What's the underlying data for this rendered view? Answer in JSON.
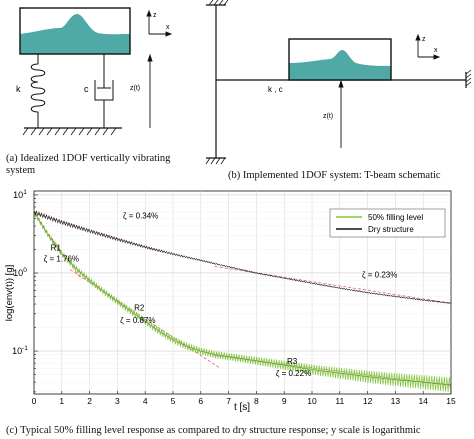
{
  "captions": {
    "a": "(a) Idealized 1DOF vertically vibrating system",
    "b": "(b) Implemented 1DOF system: T-beam schematic",
    "c": "(c) Typical 50% filling level response as compared to dry structure response; y scale is logarithmic"
  },
  "diagram_a": {
    "axis_z": "z",
    "axis_x": "x",
    "spring_label": "k",
    "damper_label": "c",
    "displacement_label": "z(t)"
  },
  "diagram_b": {
    "axis_z": "z",
    "axis_x": "x",
    "beam_label": "k , c",
    "displacement_label": "z(t)"
  },
  "colors": {
    "liquid": "#4fa9a6",
    "filling_series": "#7fc63a",
    "filling_series_dark": "#3f6f1f",
    "dry_series": "#111111",
    "fit_line": "#e0504a"
  },
  "chart_data": {
    "type": "line",
    "title": "",
    "xlabel": "t [s]",
    "ylabel": "log(env(t)) [g]",
    "xlim": [
      0,
      15
    ],
    "ylim_log10": [
      -1.55,
      1.05
    ],
    "yscale": "log",
    "grid": true,
    "legend_position": "top-right",
    "x_ticks": [
      0,
      1,
      2,
      3,
      4,
      5,
      6,
      7,
      8,
      9,
      10,
      11,
      12,
      13,
      14,
      15
    ],
    "y_ticks": [
      {
        "exp": -1,
        "value": 0.1
      },
      {
        "exp": 0,
        "value": 1
      },
      {
        "exp": 1,
        "value": 10
      }
    ],
    "series": [
      {
        "name": "50% filling level",
        "x": [
          0,
          0.5,
          1.0,
          1.5,
          2.0,
          2.5,
          3.0,
          3.5,
          4.0,
          4.5,
          5.0,
          5.5,
          6.0,
          6.5,
          7.0,
          8.0,
          9.0,
          10.0,
          11.0,
          12.0,
          13.0,
          14.0,
          15.0
        ],
        "y": [
          6.0,
          3.1,
          1.75,
          1.15,
          0.8,
          0.58,
          0.43,
          0.32,
          0.24,
          0.18,
          0.14,
          0.115,
          0.1,
          0.09,
          0.085,
          0.075,
          0.066,
          0.058,
          0.052,
          0.047,
          0.043,
          0.04,
          0.037
        ]
      },
      {
        "name": "Dry structure",
        "x": [
          0,
          1,
          2,
          3,
          4,
          5,
          6,
          7,
          8,
          9,
          10,
          11,
          12,
          13,
          14,
          15
        ],
        "y": [
          6.0,
          4.45,
          3.45,
          2.7,
          2.15,
          1.75,
          1.45,
          1.2,
          1.0,
          0.86,
          0.74,
          0.64,
          0.56,
          0.5,
          0.45,
          0.41
        ]
      }
    ],
    "annotations": [
      {
        "text": "ζ = 0.34%",
        "x": 3.2,
        "y": 5.0
      },
      {
        "text": "ζ = 0.23%",
        "x": 11.8,
        "y": 0.88
      },
      {
        "text": "R1",
        "x": 0.6,
        "y": 1.95
      },
      {
        "text": "ζ = 1.76%",
        "x": 0.35,
        "y": 1.4
      },
      {
        "text": "R2",
        "x": 3.6,
        "y": 0.33
      },
      {
        "text": "ζ = 0.87%",
        "x": 3.1,
        "y": 0.23
      },
      {
        "text": "R3",
        "x": 9.1,
        "y": 0.068
      },
      {
        "text": "ζ = 0.22%",
        "x": 8.7,
        "y": 0.048
      }
    ]
  }
}
